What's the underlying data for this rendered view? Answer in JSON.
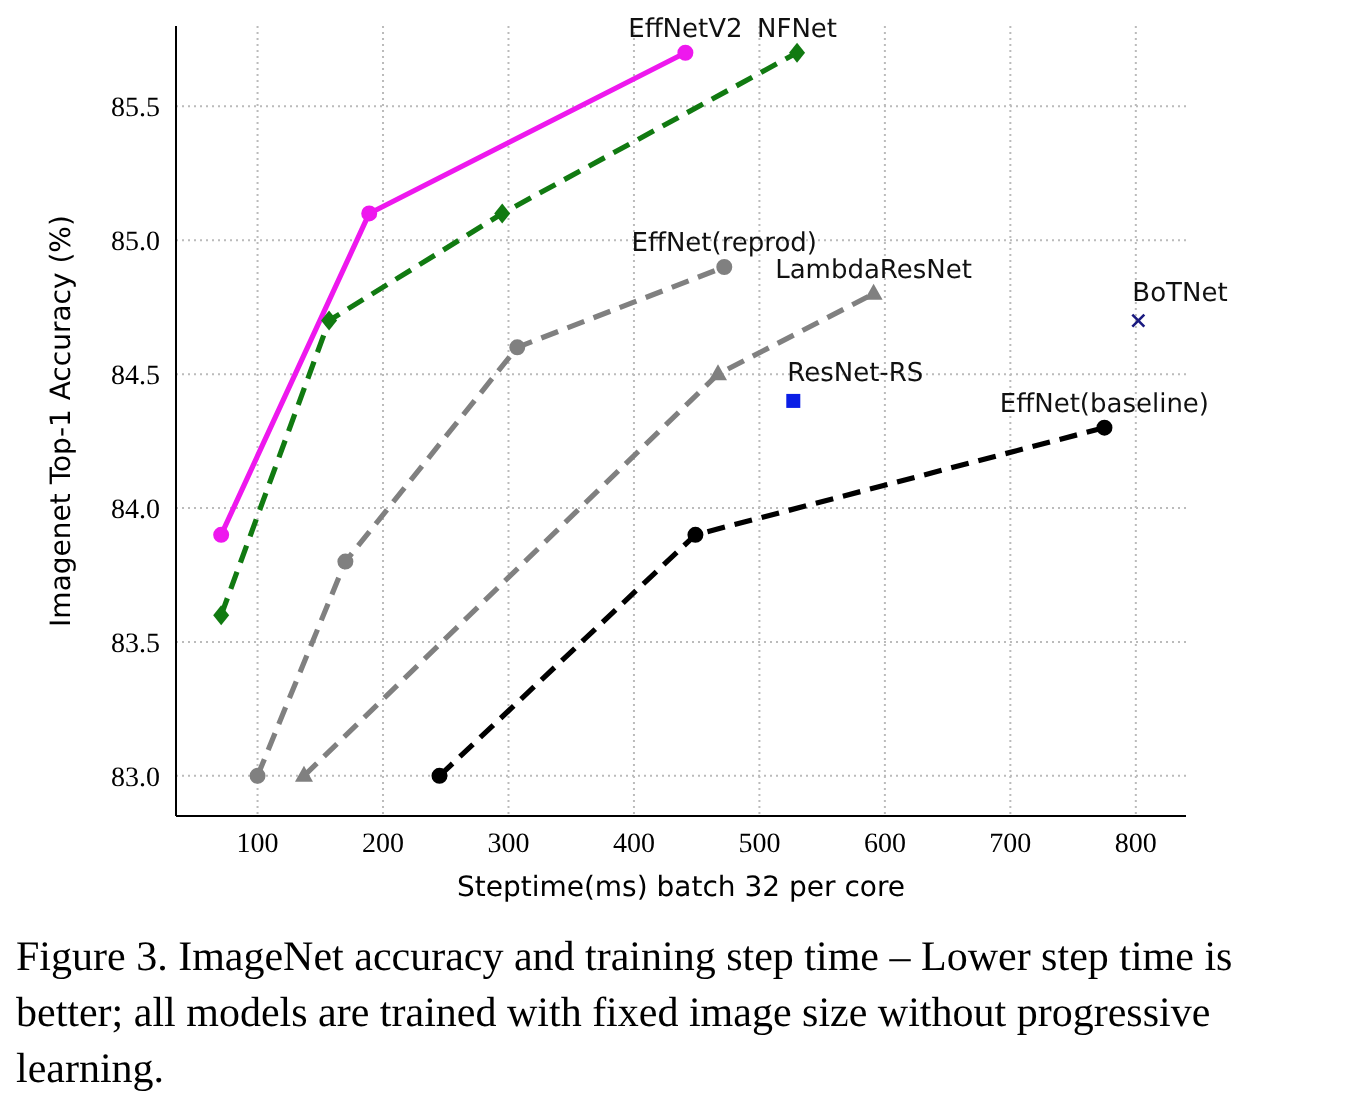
{
  "chart_data": {
    "type": "line",
    "xlabel": "Steptime(ms) batch 32 per core",
    "ylabel": "Imagenet Top-1 Accuracy (%)",
    "xlim": [
      35,
      840
    ],
    "xticks": [
      100,
      200,
      300,
      400,
      500,
      600,
      700,
      800
    ],
    "ylim": [
      82.85,
      85.8
    ],
    "yticks": [
      {
        "value": 83.0,
        "label": "83.0"
      },
      {
        "value": 83.5,
        "label": "83.5"
      },
      {
        "value": 84.0,
        "label": "84.0"
      },
      {
        "value": 84.5,
        "label": "84.5"
      },
      {
        "value": 85.0,
        "label": "85.0"
      },
      {
        "value": 85.5,
        "label": "85.5"
      }
    ],
    "grid": true,
    "series": [
      {
        "name": "EffNetV2",
        "color": "#ee18ee",
        "marker": "circle",
        "line_style": "solid",
        "x": [
          71,
          189,
          441
        ],
        "values": [
          83.9,
          85.1,
          85.7
        ]
      },
      {
        "name": "NFNet",
        "color": "#117a11",
        "marker": "diamond",
        "line_style": "dashed",
        "x": [
          71,
          157,
          295,
          530
        ],
        "values": [
          83.6,
          84.7,
          85.1,
          85.7
        ]
      },
      {
        "name": "EffNet(reprod)",
        "color": "#808080",
        "marker": "circle",
        "line_style": "dashed",
        "x": [
          100,
          170,
          307,
          472
        ],
        "values": [
          83.0,
          83.8,
          84.6,
          84.9
        ]
      },
      {
        "name": "LambdaResNet",
        "color": "#808080",
        "marker": "triangle",
        "line_style": "dashed",
        "x": [
          137,
          467,
          591
        ],
        "values": [
          83.0,
          84.5,
          84.8
        ]
      },
      {
        "name": "EffNet(baseline)",
        "color": "#000000",
        "marker": "circle",
        "line_style": "dashed",
        "x": [
          245,
          449,
          775
        ],
        "values": [
          83.0,
          83.9,
          84.3
        ]
      },
      {
        "name": "ResNet-RS",
        "type": "scatter",
        "color": "#0a1ee6",
        "marker": "square",
        "x": [
          527
        ],
        "values": [
          84.4
        ]
      },
      {
        "name": "BoTNet",
        "type": "scatter",
        "color": "#1a1a80",
        "marker": "cross",
        "x": [
          802
        ],
        "values": [
          84.7
        ]
      }
    ],
    "annotations": [
      "Figure 3. ImageNet accuracy and training step time – Lower step time is better; all models are trained with fixed image size without progressive learning."
    ]
  }
}
